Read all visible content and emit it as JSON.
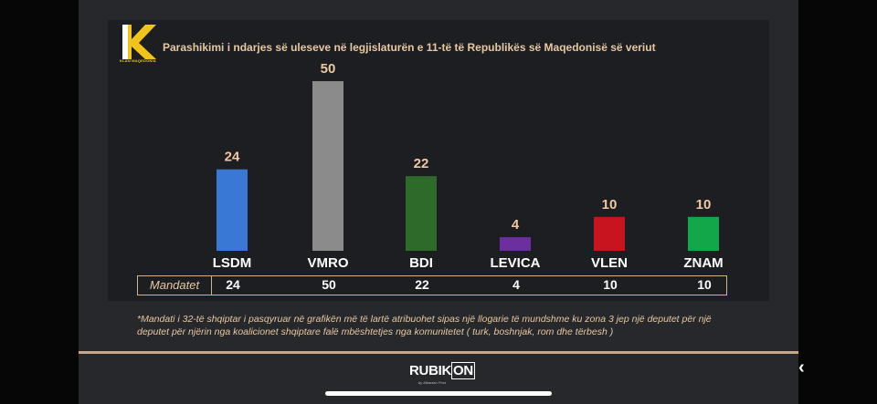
{
  "header": {
    "logo_letter": "K",
    "logo_caption": "KLAN MAQEDONIA",
    "title": "Parashikimi i ndarjes së uleseve në legjislaturën e 11-të të Republikës së Maqedonisë së veriut"
  },
  "chart_data": {
    "type": "bar",
    "title": "Parashikimi i ndarjes së uleseve në legjislaturën e 11-të të Republikës së Maqedonisë së veriut",
    "categories": [
      "LSDM",
      "VMRO",
      "BDI",
      "LEVICA",
      "VLEN",
      "ZNAM"
    ],
    "values": [
      24,
      50,
      22,
      4,
      10,
      10
    ],
    "colors": [
      "#3a78d6",
      "#8b8b8b",
      "#2e6a2a",
      "#6b2fa0",
      "#c8141e",
      "#12a84a"
    ],
    "ylim": [
      0,
      50
    ],
    "grid": false,
    "legend": "none"
  },
  "table": {
    "header": "Mandatet",
    "values": [
      "24",
      "50",
      "22",
      "4",
      "10",
      "10"
    ]
  },
  "footnote": "*Mandati i 32-të shqiptar i pasqyruar në grafikën më të lartë atribuohet sipas një llogarie të mundshme ku zona 3 jep një deputet për një deputet për njërin nga koalicionet shqiptare falë mbështetjes nga komunitetet ( turk, boshnjak, rom dhe tërbesh )",
  "footer": {
    "brand_left": "RUBIK",
    "brand_boxed": "ON",
    "brand_tagline": "by Albanian Post"
  },
  "nav": {
    "back_icon": "chevron-left-icon"
  }
}
